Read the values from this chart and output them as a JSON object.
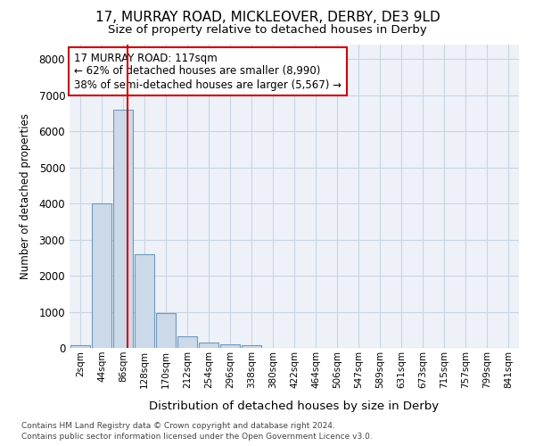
{
  "title": "17, MURRAY ROAD, MICKLEOVER, DERBY, DE3 9LD",
  "subtitle": "Size of property relative to detached houses in Derby",
  "xlabel": "Distribution of detached houses by size in Derby",
  "ylabel": "Number of detached properties",
  "footer_line1": "Contains HM Land Registry data © Crown copyright and database right 2024.",
  "footer_line2": "Contains public sector information licensed under the Open Government Licence v3.0.",
  "bin_labels": [
    "2sqm",
    "44sqm",
    "86sqm",
    "128sqm",
    "170sqm",
    "212sqm",
    "254sqm",
    "296sqm",
    "338sqm",
    "380sqm",
    "422sqm",
    "464sqm",
    "506sqm",
    "547sqm",
    "589sqm",
    "631sqm",
    "673sqm",
    "715sqm",
    "757sqm",
    "799sqm",
    "841sqm"
  ],
  "bar_values": [
    70,
    4000,
    6600,
    2600,
    960,
    330,
    150,
    100,
    70,
    0,
    0,
    0,
    0,
    0,
    0,
    0,
    0,
    0,
    0,
    0,
    0
  ],
  "bar_color": "#ccd9e8",
  "bar_edge_color": "#7099bb",
  "grid_color": "#c8d4e4",
  "property_line_color": "#cc0000",
  "ylim": [
    0,
    8400
  ],
  "yticks": [
    0,
    1000,
    2000,
    3000,
    4000,
    5000,
    6000,
    7000,
    8000
  ],
  "annotation_title": "17 MURRAY ROAD: 117sqm",
  "annotation_line1": "← 62% of detached houses are smaller (8,990)",
  "annotation_line2": "38% of semi-detached houses are larger (5,567) →",
  "bg_color": "#eef2f8",
  "title_fontsize": 11,
  "subtitle_fontsize": 9.5
}
